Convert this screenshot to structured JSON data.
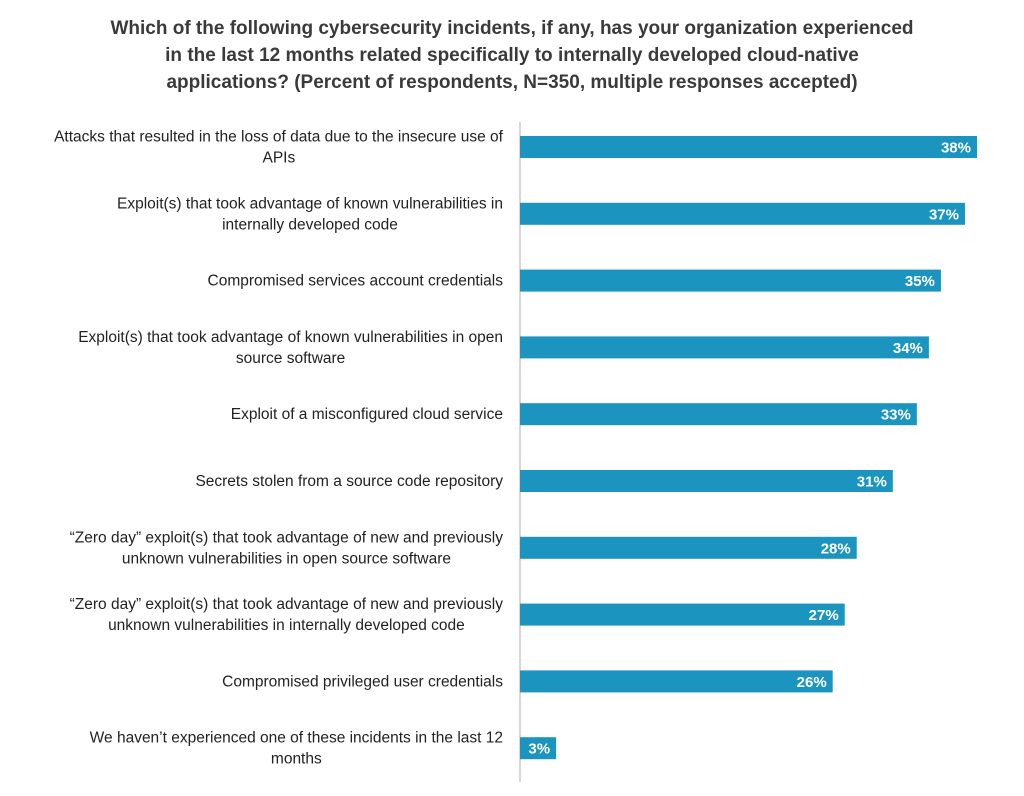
{
  "chart_data": {
    "type": "bar",
    "orientation": "horizontal",
    "title_lines": [
      "Which of the following cybersecurity incidents, if any, has your organization experienced",
      "in the last 12 months related specifically to internally developed cloud-native",
      "applications? (Percent of respondents, N=350, multiple responses accepted)"
    ],
    "categories": [
      [
        "Attacks that resulted in the loss of data due to the insecure use of",
        "APIs"
      ],
      [
        "Exploit(s) that took advantage of known vulnerabilities in",
        "internally developed code"
      ],
      [
        "Compromised services account credentials"
      ],
      [
        "Exploit(s) that took advantage of known vulnerabilities in open",
        "source software"
      ],
      [
        "Exploit of a misconfigured cloud service"
      ],
      [
        "Secrets stolen from a source code repository"
      ],
      [
        "“Zero day” exploit(s) that took advantage of new and previously",
        "unknown vulnerabilities in open source software"
      ],
      [
        "“Zero day” exploit(s) that took advantage of new and previously",
        "unknown vulnerabilities in internally developed code"
      ],
      [
        "Compromised privileged user credentials"
      ],
      [
        "We haven’t experienced one of these incidents in the last 12",
        "months"
      ]
    ],
    "values": [
      38,
      37,
      35,
      34,
      33,
      31,
      28,
      27,
      26,
      3
    ],
    "value_labels": [
      "38%",
      "37%",
      "35%",
      "34%",
      "33%",
      "31%",
      "28%",
      "27%",
      "26%",
      "3%"
    ],
    "unit": "%",
    "xlim": [
      0,
      38
    ],
    "bar_color": "#1b95bf",
    "axis_color": "#c8c8c8",
    "grid": false,
    "legend": "none"
  }
}
